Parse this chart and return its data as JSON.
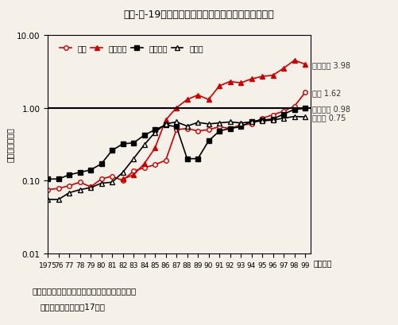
{
  "title": "第２-３-19図　我が国と主要国との技術貿易比の推移",
  "ylabel": "（輸出／輸入）",
  "xlabel_suffix": "（年度）",
  "source_line1": "資料：総務省統計局「科学技術研究調査報告」",
  "source_line2": "（参照：付属資料（17））",
  "years": [
    1975,
    1976,
    1977,
    1978,
    1979,
    1980,
    1981,
    1982,
    1983,
    1984,
    1985,
    1986,
    1987,
    1988,
    1989,
    1990,
    1991,
    1992,
    1993,
    1994,
    1995,
    1996,
    1997,
    1998,
    1999
  ],
  "usa": [
    0.075,
    0.078,
    0.085,
    0.095,
    0.082,
    0.105,
    0.115,
    0.1,
    0.135,
    0.15,
    0.165,
    0.19,
    0.5,
    0.52,
    0.48,
    0.5,
    0.55,
    0.52,
    0.58,
    0.6,
    0.72,
    0.8,
    0.9,
    1.05,
    1.62
  ],
  "uk": [
    null,
    null,
    null,
    null,
    null,
    null,
    null,
    0.105,
    0.12,
    0.17,
    0.28,
    0.68,
    1.0,
    1.3,
    1.5,
    1.3,
    2.0,
    2.3,
    2.2,
    2.5,
    2.7,
    2.8,
    3.5,
    4.5,
    3.98
  ],
  "france": [
    0.105,
    0.105,
    0.12,
    0.13,
    0.14,
    0.17,
    0.26,
    0.32,
    0.33,
    0.42,
    0.5,
    0.58,
    0.55,
    0.2,
    0.2,
    0.35,
    0.48,
    0.52,
    0.55,
    0.65,
    0.68,
    0.7,
    0.82,
    0.95,
    0.98
  ],
  "germany": [
    0.055,
    0.055,
    0.068,
    0.075,
    0.08,
    0.092,
    0.095,
    0.13,
    0.2,
    0.31,
    0.46,
    0.6,
    0.64,
    0.56,
    0.63,
    0.6,
    0.62,
    0.64,
    0.62,
    0.64,
    0.66,
    0.68,
    0.72,
    0.76,
    0.75
  ],
  "usa_label": "米国 1.62",
  "uk_label": "イギリス 3.98",
  "france_label": "フランス 0.98",
  "germany_label": "ドイツ 0.75",
  "legend_usa": "米国",
  "legend_uk": "イギリス",
  "legend_france": "フランス",
  "legend_germany": "ドイツ",
  "ymin": 0.01,
  "ymax": 10.0,
  "yticks": [
    0.01,
    0.1,
    1.0,
    10.0
  ],
  "ytick_labels": [
    "0.01",
    "0.10",
    "1.00",
    "10.00"
  ],
  "bg_color": "#f5f0e8",
  "line_color_red": "#cc0000",
  "line_color_black": "#000000",
  "hline_y": 1.0
}
